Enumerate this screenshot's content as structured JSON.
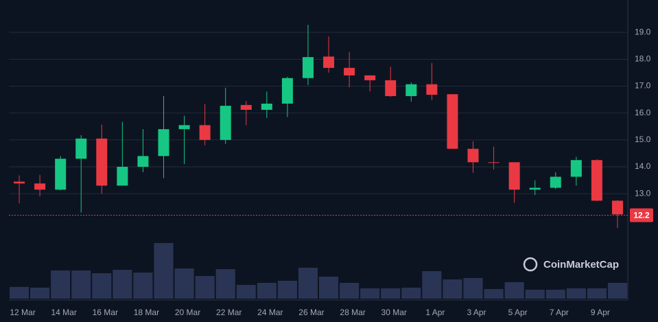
{
  "chart_data": {
    "type": "candlestick",
    "categories": [
      "12 Mar",
      null,
      "14 Mar",
      null,
      "16 Mar",
      null,
      "18 Mar",
      null,
      "20 Mar",
      null,
      "22 Mar",
      null,
      "24 Mar",
      null,
      "26 Mar",
      null,
      "28 Mar",
      null,
      "30 Mar",
      null,
      "1 Apr",
      null,
      "3 Apr",
      null,
      "5 Apr",
      null,
      "7 Apr",
      null,
      "9 Apr",
      null
    ],
    "open": [
      13.45,
      13.38,
      13.15,
      14.3,
      15.05,
      13.3,
      14.0,
      14.4,
      15.4,
      15.55,
      15.0,
      16.3,
      16.12,
      16.35,
      17.3,
      18.1,
      17.68,
      17.4,
      17.22,
      16.63,
      17.07,
      16.7,
      14.67,
      14.17,
      14.17,
      13.15,
      13.22,
      13.63,
      14.25,
      12.74
    ],
    "high": [
      13.68,
      13.7,
      14.4,
      15.18,
      15.57,
      15.67,
      15.4,
      16.63,
      15.9,
      16.33,
      16.94,
      16.45,
      16.8,
      17.35,
      19.28,
      18.85,
      18.27,
      17.4,
      17.72,
      17.14,
      17.86,
      16.7,
      14.95,
      14.75,
      14.17,
      13.5,
      13.8,
      14.37,
      14.28,
      12.76
    ],
    "low": [
      12.64,
      12.9,
      13.12,
      12.3,
      13.0,
      13.3,
      13.8,
      13.58,
      14.1,
      14.8,
      14.85,
      15.55,
      15.82,
      15.85,
      17.04,
      17.5,
      16.96,
      16.8,
      16.6,
      16.43,
      16.48,
      14.67,
      13.78,
      13.9,
      12.66,
      12.95,
      13.17,
      13.3,
      12.72,
      11.72
    ],
    "close": [
      13.38,
      13.15,
      14.3,
      15.05,
      13.3,
      14.0,
      14.4,
      15.4,
      15.55,
      15.0,
      16.27,
      16.12,
      16.35,
      17.3,
      18.08,
      17.68,
      17.4,
      17.22,
      16.63,
      17.07,
      16.68,
      14.67,
      14.17,
      14.15,
      13.15,
      13.22,
      13.63,
      14.25,
      12.74,
      12.23
    ],
    "volume": [
      17,
      16,
      41,
      41,
      37,
      42,
      38,
      81,
      44,
      33,
      43,
      20,
      23,
      26,
      45,
      32,
      23,
      15,
      15,
      16,
      40,
      28,
      30,
      14,
      24,
      13,
      13,
      15,
      15,
      23
    ],
    "up_color": "#16c784",
    "down_color": "#ea3943",
    "volume_color": "#2a3555",
    "ylim": [
      11.65,
      20.0
    ],
    "yticks": [
      {
        "value": 13,
        "label": "13.0"
      },
      {
        "value": 14,
        "label": "14.0"
      },
      {
        "value": 15,
        "label": "15.0"
      },
      {
        "value": 16,
        "label": "16.0"
      },
      {
        "value": 17,
        "label": "17.0"
      },
      {
        "value": 18,
        "label": "18.0"
      },
      {
        "value": 19,
        "label": "19.0"
      }
    ],
    "grid": true,
    "last_price": 12.2,
    "watermark": "CoinMarketCap"
  }
}
